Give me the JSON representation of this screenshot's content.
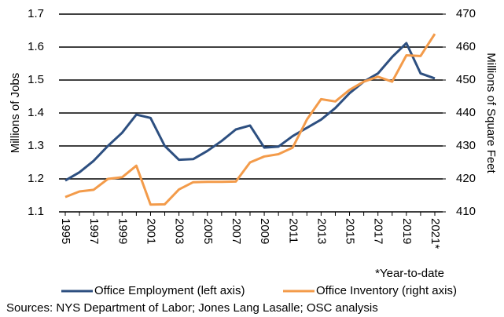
{
  "chart_data": {
    "type": "line",
    "categories": [
      "1995",
      null,
      "1997",
      null,
      "1999",
      null,
      "2001",
      null,
      "2003",
      null,
      "2005",
      null,
      "2007",
      null,
      "2009",
      null,
      "2011",
      null,
      "2013",
      null,
      "2015",
      null,
      "2017",
      null,
      "2019",
      null,
      "2021*"
    ],
    "series": [
      {
        "name": "Office Employment (left axis)",
        "color": "#2d4f80",
        "axis": "y",
        "values": [
          1.195,
          1.22,
          1.255,
          1.3,
          1.34,
          1.395,
          1.385,
          1.3,
          1.258,
          1.26,
          1.285,
          1.315,
          1.35,
          1.362,
          1.295,
          1.298,
          1.33,
          1.355,
          1.38,
          1.415,
          1.46,
          1.495,
          1.52,
          1.57,
          1.612,
          1.52,
          1.505
        ]
      },
      {
        "name": "Office Inventory (right axis)",
        "color": "#f39b4a",
        "axis": "y2",
        "values": [
          414.5,
          416.2,
          416.7,
          420,
          420.5,
          424,
          412.2,
          412.3,
          416.8,
          419,
          419.1,
          419.1,
          419.2,
          425,
          426.8,
          427.5,
          429.5,
          438,
          444.2,
          443.5,
          447,
          449.5,
          451,
          449.5,
          457.5,
          457.3,
          464
        ]
      }
    ],
    "ylabel": "Millions of Jobs",
    "y2label": "Millions of Square Feet",
    "ylim": [
      1.1,
      1.7
    ],
    "yticks": [
      1.1,
      1.2,
      1.3,
      1.4,
      1.5,
      1.6,
      1.7
    ],
    "y2lim": [
      410,
      470
    ],
    "y2ticks": [
      410,
      420,
      430,
      440,
      450,
      460,
      470
    ],
    "grid": true,
    "legend": "bottom",
    "footnote": "*Year-to-date",
    "source": "Sources: NYS Department of Labor; Jones Lang Lasalle; OSC analysis"
  }
}
